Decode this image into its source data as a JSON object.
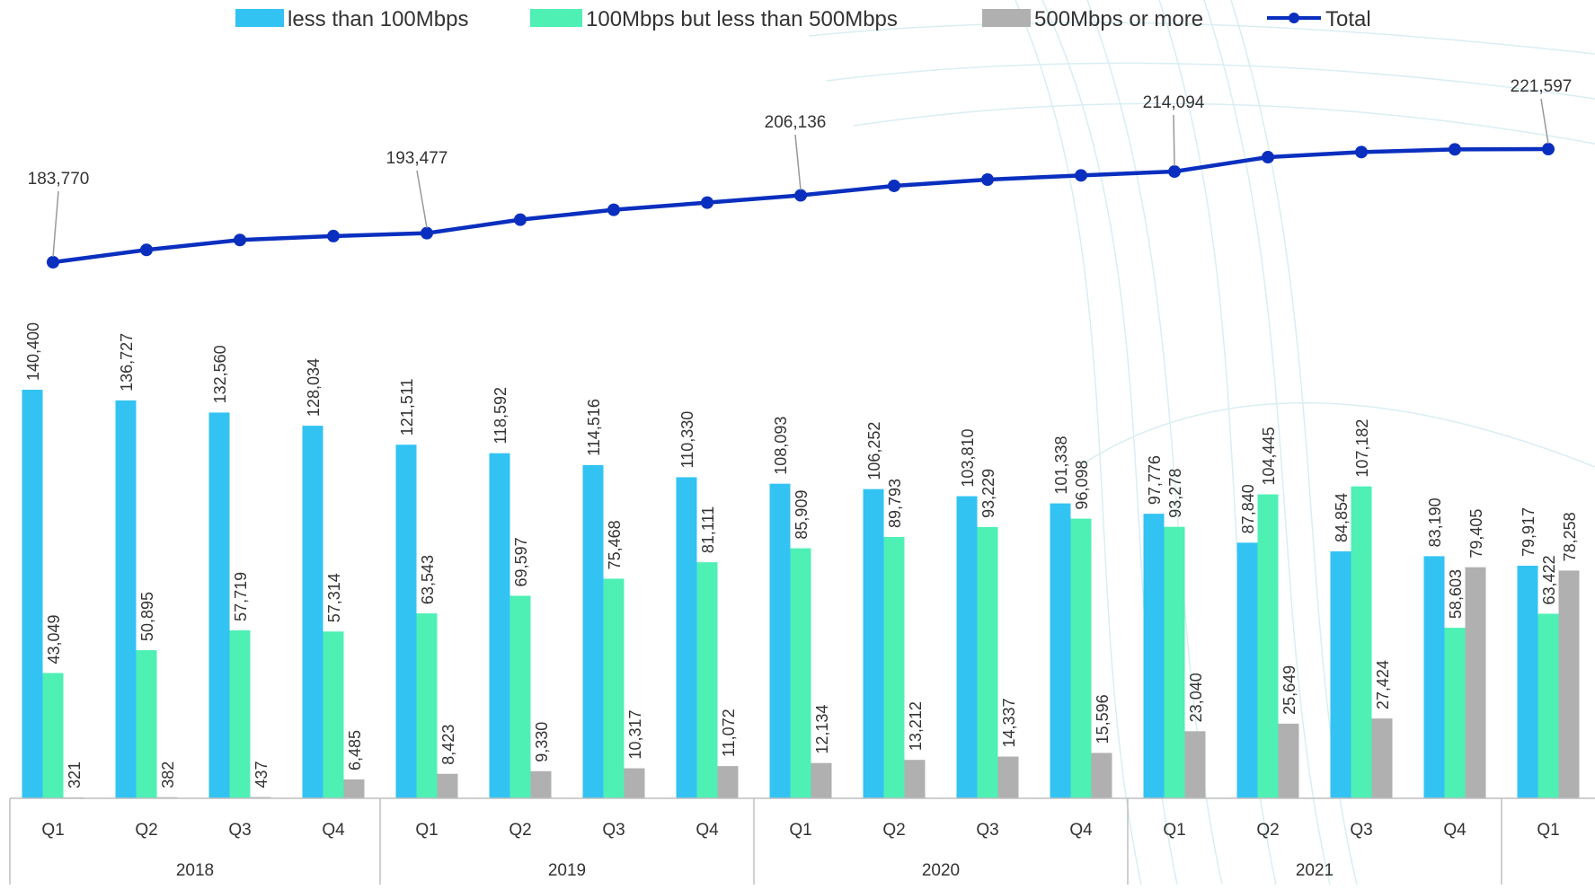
{
  "chart_data": {
    "type": "bar",
    "categories": [
      "Q1",
      "Q2",
      "Q3",
      "Q4",
      "Q1",
      "Q2",
      "Q3",
      "Q4",
      "Q1",
      "Q2",
      "Q3",
      "Q4",
      "Q1",
      "Q2",
      "Q3",
      "Q4",
      "Q1"
    ],
    "groups": [
      {
        "label": "2018",
        "span": 4
      },
      {
        "label": "2019",
        "span": 4
      },
      {
        "label": "2020",
        "span": 4
      },
      {
        "label": "2021",
        "span": 4
      },
      {
        "label": "",
        "span": 1
      }
    ],
    "series": [
      {
        "name": "less than 100Mbps",
        "color": "#33c3f3",
        "values": [
          140400,
          136727,
          132560,
          128034,
          121511,
          118592,
          114516,
          110330,
          108093,
          106252,
          103810,
          101338,
          97776,
          87840,
          84854,
          83190,
          79917
        ]
      },
      {
        "name": "100Mbps but less than 500Mbps",
        "color": "#4ef0b4",
        "values": [
          43049,
          50895,
          57719,
          57314,
          63543,
          69597,
          75468,
          81111,
          85909,
          89793,
          93229,
          96098,
          93278,
          104445,
          107182,
          58603,
          63422
        ]
      },
      {
        "name": "500Mbps or more",
        "color": "#b0b0b0",
        "values": [
          321,
          382,
          437,
          6485,
          8423,
          9330,
          10317,
          11072,
          12134,
          13212,
          14337,
          15596,
          23040,
          25649,
          27424,
          79405,
          78258
        ]
      }
    ],
    "total": {
      "name": "Total",
      "color": "#0a2fbf",
      "values": [
        183770,
        187900,
        191200,
        192500,
        193477,
        198000,
        201300,
        203700,
        206136,
        209300,
        211400,
        212800,
        214094,
        218900,
        220600,
        221500,
        221597
      ],
      "labels": [
        {
          "index": 0,
          "text": "183,770"
        },
        {
          "index": 4,
          "text": "193,477"
        },
        {
          "index": 8,
          "text": "206,136"
        },
        {
          "index": 12,
          "text": "214,094"
        },
        {
          "index": 16,
          "text": "221,597"
        }
      ]
    },
    "bar_data_labels": [
      [
        "140,400",
        "136,727",
        "132,560",
        "128,034",
        "121,511",
        "118,592",
        "114,516",
        "110,330",
        "108,093",
        "106,252",
        "103,810",
        "101,338",
        "97,776",
        "87,840",
        "84,854",
        "83,190",
        "79,917"
      ],
      [
        "43,049",
        "50,895",
        "57,719",
        "57,314",
        "63,543",
        "69,597",
        "75,468",
        "81,111",
        "85,909",
        "89,793",
        "93,229",
        "96,098",
        "93,278",
        "104,445",
        "107,182",
        "58,603",
        "63,422"
      ],
      [
        "321",
        "382",
        "437",
        "6,485",
        "8,423",
        "9,330",
        "10,317",
        "11,072",
        "12,134",
        "13,212",
        "14,337",
        "15,596",
        "23,040",
        "25,649",
        "27,424",
        "79,405",
        "78,258"
      ]
    ],
    "legend_position": "top",
    "grid": false
  }
}
